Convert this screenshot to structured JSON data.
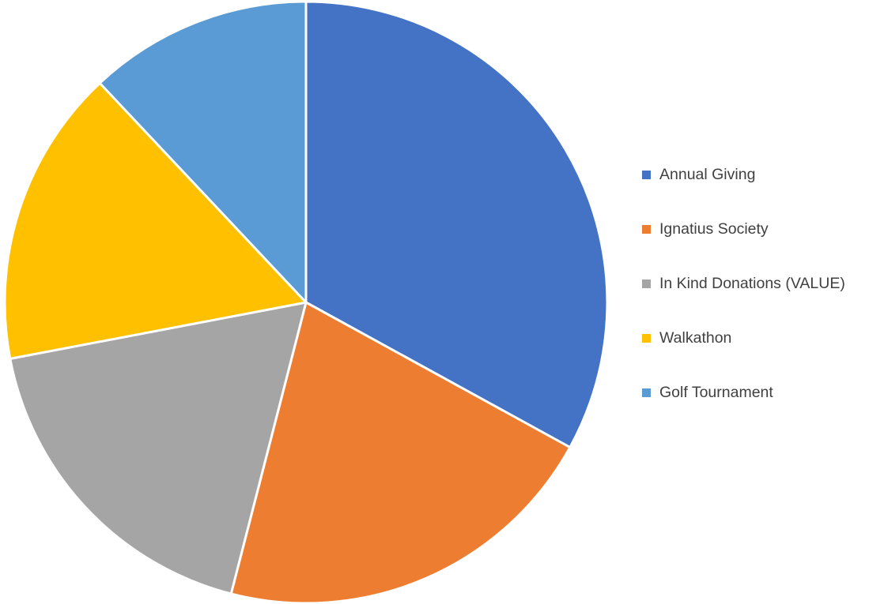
{
  "chart_data": {
    "type": "pie",
    "title": "",
    "start_angle_deg": 0,
    "direction": "clockwise",
    "slices": [
      {
        "label": "Annual Giving",
        "value": 33,
        "color": "#4472C4"
      },
      {
        "label": "Ignatius Society",
        "value": 21,
        "color": "#ED7D31"
      },
      {
        "label": "In Kind Donations (VALUE)",
        "value": 18,
        "color": "#A5A5A5"
      },
      {
        "label": "Walkathon",
        "value": 16,
        "color": "#FFC000"
      },
      {
        "label": "Golf Tournament",
        "value": 12,
        "color": "#5B9BD5"
      }
    ],
    "legend": {
      "position": "right",
      "items": [
        "Annual Giving",
        "Ignatius Society",
        "In Kind Donations (VALUE)",
        "Walkathon",
        "Golf Tournament"
      ]
    }
  }
}
